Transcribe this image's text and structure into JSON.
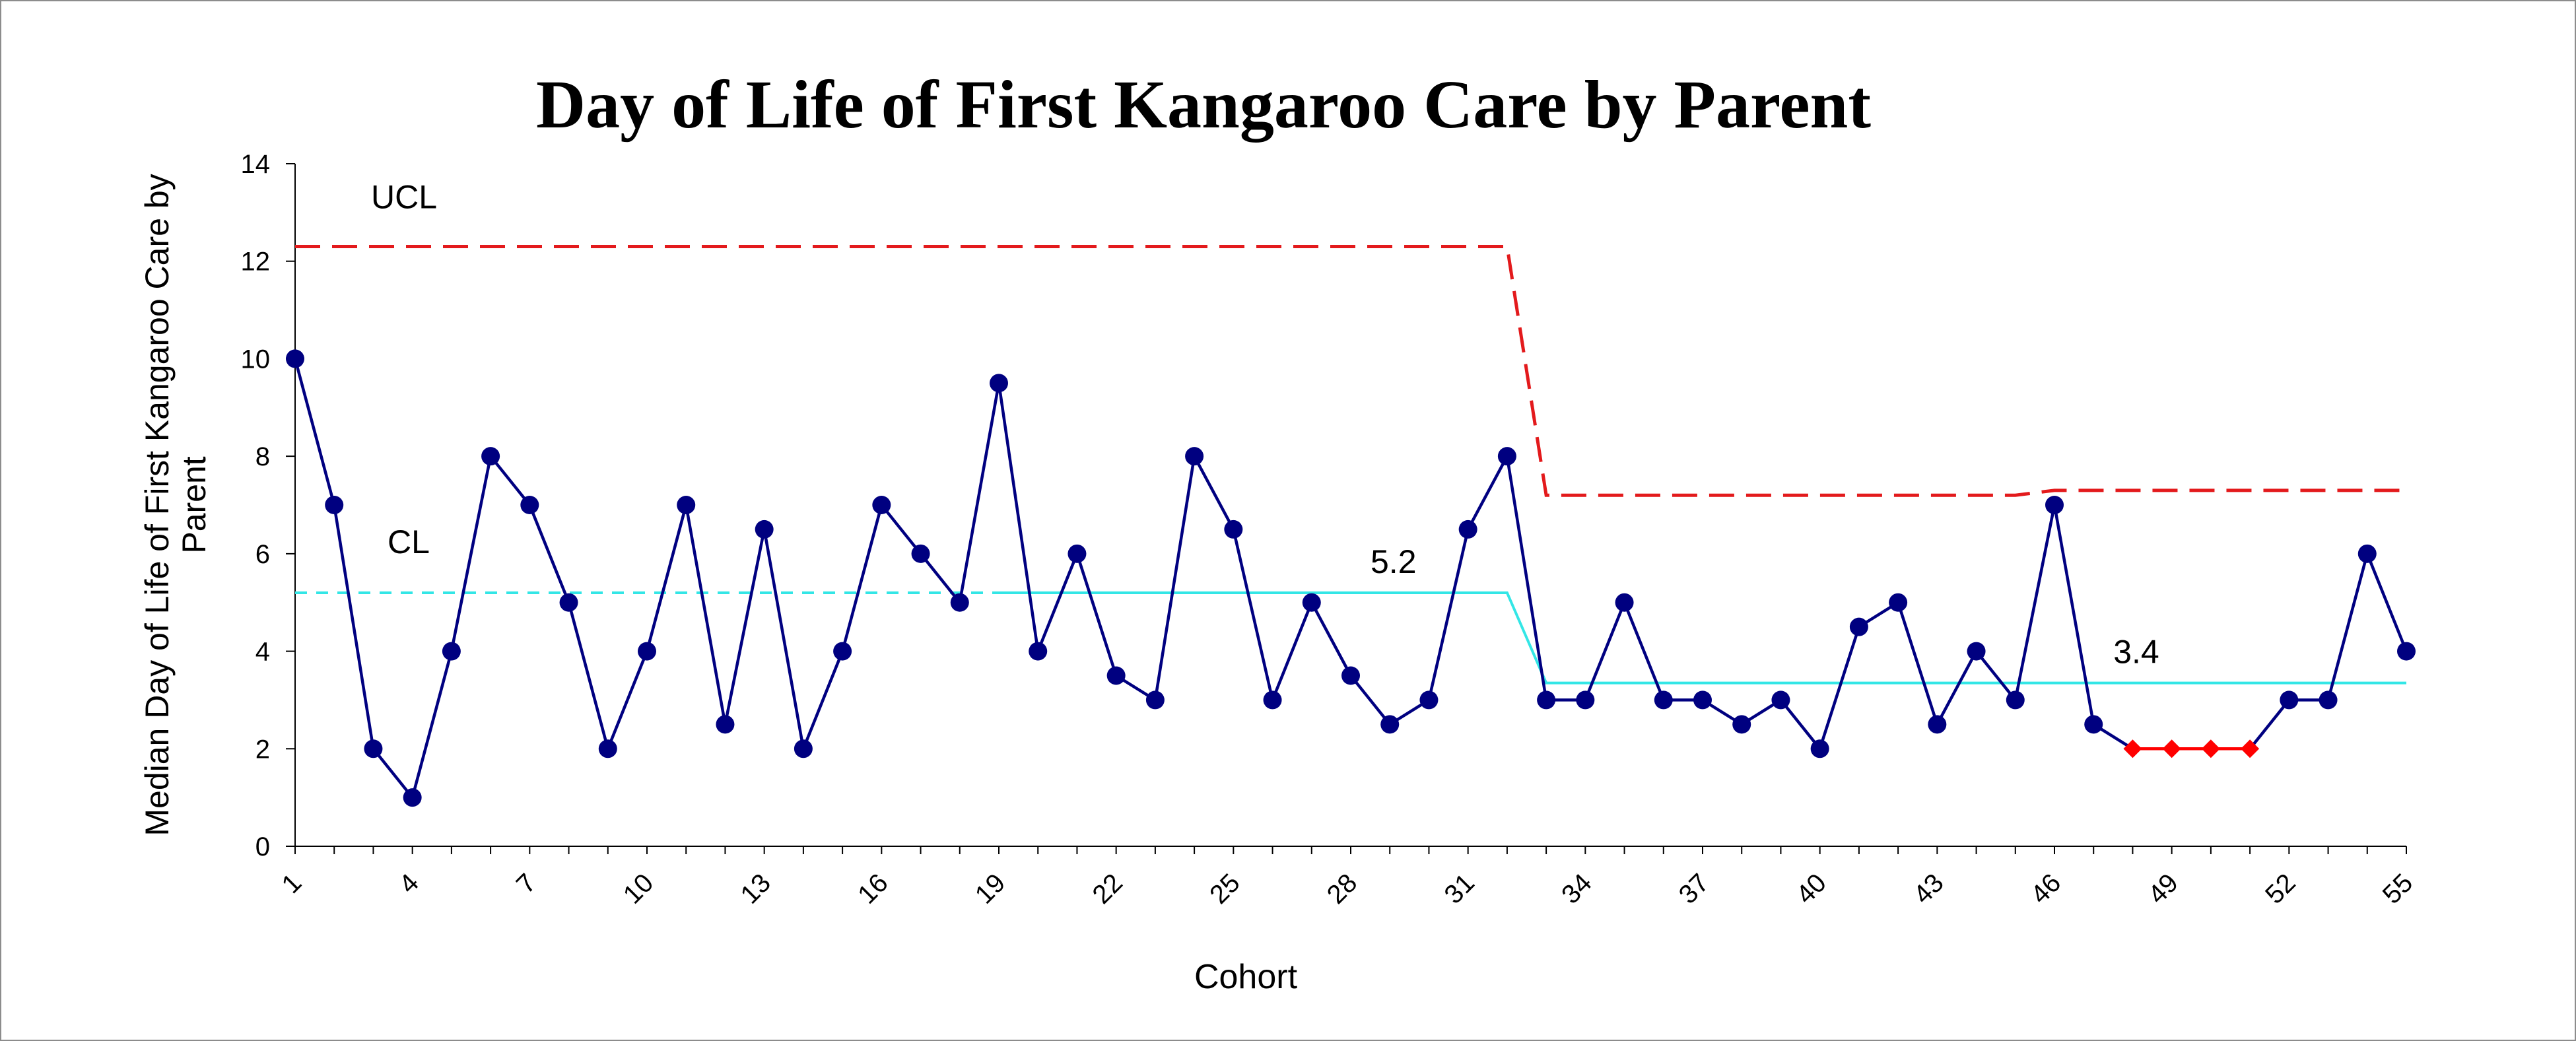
{
  "chart_data": {
    "type": "line",
    "title": "Day of Life of First Kangaroo Care by Parent",
    "xlabel": "Cohort",
    "ylabel": "Median Day of Life of First Kangaroo Care by Parent",
    "ylim": [
      0,
      14
    ],
    "yticks": [
      0,
      2,
      4,
      6,
      8,
      10,
      12,
      14
    ],
    "xlim": [
      1,
      55
    ],
    "xtick_labels": [
      "1",
      "4",
      "7",
      "10",
      "13",
      "16",
      "19",
      "22",
      "25",
      "28",
      "31",
      "34",
      "37",
      "40",
      "43",
      "46",
      "49",
      "52",
      "55"
    ],
    "grid": false,
    "x": [
      1,
      2,
      3,
      4,
      5,
      6,
      7,
      8,
      9,
      10,
      11,
      12,
      13,
      14,
      15,
      16,
      17,
      18,
      19,
      20,
      21,
      22,
      23,
      24,
      25,
      26,
      27,
      28,
      29,
      30,
      31,
      32,
      33,
      34,
      35,
      36,
      37,
      38,
      39,
      40,
      41,
      42,
      43,
      44,
      45,
      46,
      47,
      48,
      49,
      50,
      51,
      52,
      53,
      54,
      55
    ],
    "series": [
      {
        "values": [
          10,
          7,
          2,
          1,
          4,
          8,
          7,
          5,
          2,
          4,
          7,
          2.5,
          6.5,
          2,
          4,
          7,
          6,
          5,
          9.5,
          4,
          6,
          3.5,
          3,
          8,
          6.5,
          3,
          5,
          3.5,
          2.5,
          3,
          6.5,
          8,
          3,
          3,
          5,
          3,
          3,
          2.5,
          3,
          2,
          4.5,
          5,
          2.5,
          4,
          3,
          7,
          2.5,
          2,
          2,
          2,
          2,
          3,
          3,
          6,
          4
        ],
        "special_cause_points": [
          48,
          49,
          50,
          51
        ],
        "color": "#000080",
        "special_color": "#ff0000"
      }
    ],
    "control_lines": {
      "ucl": {
        "label": "UCL",
        "color": "#e31a1c",
        "points": [
          [
            1,
            12.3
          ],
          [
            32,
            12.3
          ],
          [
            33,
            7.2
          ],
          [
            45,
            7.2
          ],
          [
            46,
            7.3
          ],
          [
            55,
            7.3
          ]
        ]
      },
      "cl": {
        "label": "CL",
        "color": "#33e6e6",
        "points": [
          [
            1,
            5.2
          ],
          [
            32,
            5.2
          ],
          [
            33,
            3.35
          ],
          [
            55,
            3.35
          ]
        ],
        "dashed_until_x": 19
      }
    },
    "annotations": [
      {
        "text": "5.2",
        "x": 28,
        "y": 5.2
      },
      {
        "text": "3.4",
        "x": 47,
        "y": 3.35
      }
    ]
  }
}
